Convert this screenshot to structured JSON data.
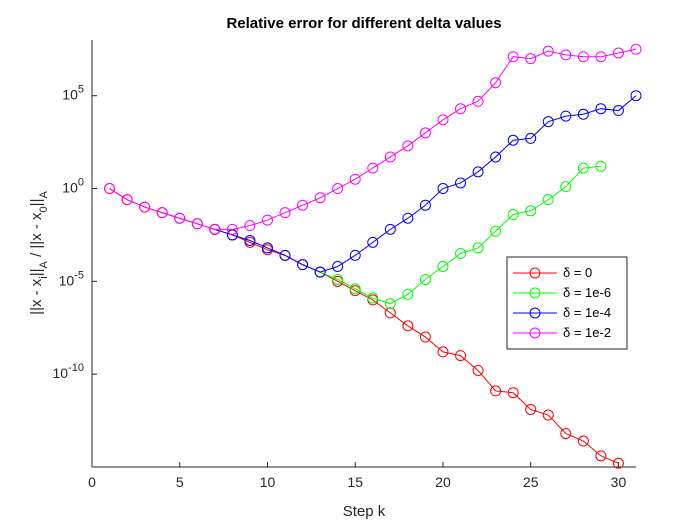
{
  "chart_data": {
    "type": "line",
    "title": "Relative error for different delta values",
    "xlabel": "Step k",
    "ylabel": "||x - x_i||_A / ||x - x_0||_A",
    "yscale": "log",
    "xlim": [
      0,
      31
    ],
    "ylim_log10": [
      -15,
      8
    ],
    "xticks": [
      "0",
      "5",
      "10",
      "15",
      "20",
      "25",
      "30"
    ],
    "yticks": [
      {
        "base": "10",
        "exp": "-10",
        "log10": -10
      },
      {
        "base": "10",
        "exp": "-5",
        "log10": -5
      },
      {
        "base": "10",
        "exp": "0",
        "log10": 0
      },
      {
        "base": "10",
        "exp": "5",
        "log10": 5
      }
    ],
    "legend_position": "right",
    "series": [
      {
        "name": "δ = 0",
        "color": "#ff0000",
        "x": [
          1,
          2,
          3,
          4,
          5,
          6,
          7,
          8,
          9,
          10,
          11,
          12,
          13,
          14,
          15,
          16,
          17,
          18,
          19,
          20,
          21,
          22,
          23,
          24,
          25,
          26,
          27,
          28,
          29,
          30
        ],
        "log10_y": [
          0,
          -0.6,
          -1.0,
          -1.3,
          -1.6,
          -1.9,
          -2.2,
          -2.5,
          -2.9,
          -3.3,
          -3.6,
          -4.1,
          -4.5,
          -5.0,
          -5.5,
          -6.0,
          -6.7,
          -7.4,
          -8.0,
          -8.8,
          -9.0,
          -9.8,
          -10.9,
          -11.0,
          -11.9,
          -12.2,
          -13.2,
          -13.6,
          -14.4,
          -14.8
        ]
      },
      {
        "name": "δ = 1e-6",
        "color": "#00ff00",
        "x": [
          13,
          14,
          15,
          16,
          17,
          18,
          19,
          20,
          21,
          22,
          23,
          24,
          25,
          26,
          27,
          28,
          29
        ],
        "log10_y": [
          -4.5,
          -4.9,
          -5.4,
          -5.9,
          -6.2,
          -5.7,
          -4.9,
          -4.2,
          -3.5,
          -3.2,
          -2.3,
          -1.4,
          -1.2,
          -0.6,
          0.1,
          1.1,
          1.2
        ]
      },
      {
        "name": "δ = 1e-4",
        "color": "#0000ff",
        "x": [
          7,
          8,
          9,
          10,
          11,
          12,
          13,
          14,
          15,
          16,
          17,
          18,
          19,
          20,
          21,
          22,
          23,
          24,
          25,
          26,
          27,
          28,
          29,
          30,
          31
        ],
        "log10_y": [
          -2.2,
          -2.5,
          -2.8,
          -3.2,
          -3.6,
          -4.1,
          -4.5,
          -4.2,
          -3.6,
          -2.9,
          -2.2,
          -1.6,
          -0.9,
          0,
          0.3,
          0.9,
          1.7,
          2.6,
          2.7,
          3.6,
          3.9,
          4.0,
          4.3,
          4.2,
          5.0
        ]
      },
      {
        "name": "δ = 1e-2",
        "color": "#ff00ff",
        "x": [
          1,
          2,
          3,
          4,
          5,
          6,
          7,
          8,
          9,
          10,
          11,
          12,
          13,
          14,
          15,
          16,
          17,
          18,
          19,
          20,
          21,
          22,
          23,
          24,
          25,
          26,
          27,
          28,
          29,
          30,
          31
        ],
        "log10_y": [
          0,
          -0.6,
          -1.0,
          -1.3,
          -1.6,
          -1.9,
          -2.2,
          -2.2,
          -2.0,
          -1.7,
          -1.3,
          -0.9,
          -0.5,
          0,
          0.5,
          1.1,
          1.7,
          2.3,
          3.0,
          3.7,
          4.3,
          4.7,
          5.7,
          7.1,
          7.0,
          7.4,
          7.2,
          7.1,
          7.1,
          7.3,
          7.5
        ]
      }
    ]
  }
}
